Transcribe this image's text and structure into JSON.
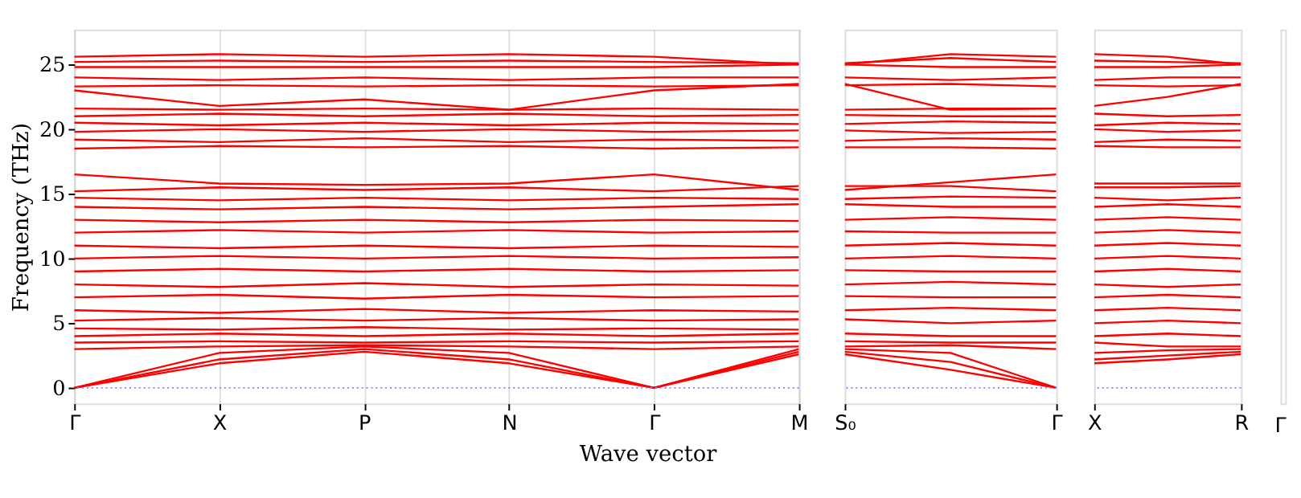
{
  "chart_data": [
    {
      "type": "line",
      "ylabel": "Frequency (THz)",
      "xlabel": "Wave vector",
      "ylim": [
        -1.2,
        27.7
      ],
      "yticks": [
        0,
        5,
        10,
        15,
        20,
        25
      ],
      "categories": [
        "Γ",
        "X",
        "P",
        "N",
        "Γ",
        "M"
      ],
      "grid": "x",
      "legend": false,
      "ref_lines": [
        {
          "axis": "y",
          "value": 0,
          "color": "#8080ff",
          "line_style": "dotted"
        }
      ],
      "series": [
        {
          "color": "#ff0000",
          "values": [
            0,
            1.9,
            2.8,
            1.9,
            0,
            2.6
          ]
        },
        {
          "color": "#ff0000",
          "values": [
            0,
            2.2,
            3.0,
            2.2,
            0,
            2.8
          ]
        },
        {
          "color": "#ff0000",
          "values": [
            0,
            2.7,
            3.2,
            2.7,
            0,
            3.0
          ]
        },
        {
          "color": "#ff0000",
          "values": [
            3.0,
            3.2,
            3.3,
            3.2,
            3.0,
            3.2
          ]
        },
        {
          "color": "#ff0000",
          "values": [
            3.5,
            3.6,
            3.5,
            3.6,
            3.5,
            3.6
          ]
        },
        {
          "color": "#ff0000",
          "values": [
            4.0,
            4.2,
            4.0,
            4.2,
            4.0,
            4.2
          ]
        },
        {
          "color": "#ff0000",
          "values": [
            4.6,
            4.5,
            4.7,
            4.5,
            4.6,
            4.5
          ]
        },
        {
          "color": "#ff0000",
          "values": [
            5.2,
            5.4,
            5.2,
            5.4,
            5.2,
            5.3
          ]
        },
        {
          "color": "#ff0000",
          "values": [
            6.0,
            5.8,
            6.1,
            5.8,
            6.0,
            5.9
          ]
        },
        {
          "color": "#ff0000",
          "values": [
            7.0,
            7.2,
            6.9,
            7.2,
            7.0,
            7.1
          ]
        },
        {
          "color": "#ff0000",
          "values": [
            8.0,
            7.8,
            8.1,
            7.8,
            8.0,
            7.9
          ]
        },
        {
          "color": "#ff0000",
          "values": [
            9.0,
            9.2,
            9.0,
            9.2,
            9.0,
            9.1
          ]
        },
        {
          "color": "#ff0000",
          "values": [
            10.0,
            10.2,
            10.0,
            10.2,
            10.0,
            10.1
          ]
        },
        {
          "color": "#ff0000",
          "values": [
            11.0,
            10.8,
            11.0,
            10.8,
            11.0,
            10.9
          ]
        },
        {
          "color": "#ff0000",
          "values": [
            12.0,
            12.2,
            12.0,
            12.2,
            12.0,
            12.1
          ]
        },
        {
          "color": "#ff0000",
          "values": [
            13.0,
            12.8,
            13.0,
            12.8,
            13.0,
            12.9
          ]
        },
        {
          "color": "#ff0000",
          "values": [
            14.0,
            13.8,
            14.0,
            13.8,
            14.0,
            14.2
          ]
        },
        {
          "color": "#ff0000",
          "values": [
            14.7,
            14.5,
            14.7,
            14.5,
            14.7,
            14.6
          ]
        },
        {
          "color": "#ff0000",
          "values": [
            15.2,
            15.5,
            15.3,
            15.5,
            15.2,
            15.6
          ]
        },
        {
          "color": "#ff0000",
          "values": [
            16.5,
            15.8,
            15.7,
            15.8,
            16.5,
            15.3
          ]
        },
        {
          "color": "#ff0000",
          "values": [
            18.5,
            18.7,
            18.6,
            18.7,
            18.5,
            18.6
          ]
        },
        {
          "color": "#ff0000",
          "values": [
            19.2,
            19.0,
            19.3,
            19.0,
            19.2,
            19.1
          ]
        },
        {
          "color": "#ff0000",
          "values": [
            19.8,
            20.0,
            19.8,
            20.0,
            19.8,
            19.9
          ]
        },
        {
          "color": "#ff0000",
          "values": [
            20.5,
            20.3,
            20.5,
            20.3,
            20.5,
            20.4
          ]
        },
        {
          "color": "#ff0000",
          "values": [
            21.0,
            21.2,
            21.0,
            21.2,
            21.0,
            21.1
          ]
        },
        {
          "color": "#ff0000",
          "values": [
            21.6,
            21.5,
            21.6,
            21.5,
            21.6,
            21.5
          ]
        },
        {
          "color": "#ff0000",
          "values": [
            23.0,
            21.8,
            22.3,
            21.5,
            23.0,
            23.5
          ]
        },
        {
          "color": "#ff0000",
          "values": [
            23.3,
            23.4,
            23.3,
            23.4,
            23.3,
            23.4
          ]
        },
        {
          "color": "#ff0000",
          "values": [
            24.0,
            23.8,
            24.0,
            23.8,
            24.0,
            24.0
          ]
        },
        {
          "color": "#ff0000",
          "values": [
            24.8,
            24.8,
            24.8,
            24.8,
            24.8,
            25.0
          ]
        },
        {
          "color": "#ff0000",
          "values": [
            25.2,
            25.3,
            25.2,
            25.3,
            25.2,
            25.1
          ]
        },
        {
          "color": "#ff0000",
          "values": [
            25.6,
            25.8,
            25.6,
            25.8,
            25.6,
            25.0
          ]
        }
      ]
    },
    {
      "type": "line",
      "ylim": [
        -1.2,
        27.7
      ],
      "yticks": [
        0,
        5,
        10,
        15,
        20,
        25
      ],
      "categories": [
        "S₀",
        null,
        "Γ"
      ],
      "legend": false,
      "tick_labels": "x",
      "ref_lines": [
        {
          "axis": "y",
          "value": 0,
          "color": "#8080ff",
          "line_style": "dotted"
        }
      ],
      "series": [
        {
          "color": "#ff0000",
          "values": [
            2.6,
            1.4,
            0
          ]
        },
        {
          "color": "#ff0000",
          "values": [
            2.8,
            2.0,
            0
          ]
        },
        {
          "color": "#ff0000",
          "values": [
            3.0,
            2.7,
            0
          ]
        },
        {
          "color": "#ff0000",
          "values": [
            3.2,
            3.3,
            3.0
          ]
        },
        {
          "color": "#ff0000",
          "values": [
            3.6,
            3.5,
            3.5
          ]
        },
        {
          "color": "#ff0000",
          "values": [
            4.2,
            4.0,
            4.0
          ]
        },
        {
          "color": "#ff0000",
          "values": [
            5.3,
            5.0,
            5.2
          ]
        },
        {
          "color": "#ff0000",
          "values": [
            6.0,
            6.2,
            6.0
          ]
        },
        {
          "color": "#ff0000",
          "values": [
            7.1,
            7.0,
            7.0
          ]
        },
        {
          "color": "#ff0000",
          "values": [
            8.0,
            8.2,
            8.0
          ]
        },
        {
          "color": "#ff0000",
          "values": [
            9.1,
            9.0,
            9.0
          ]
        },
        {
          "color": "#ff0000",
          "values": [
            10.0,
            10.2,
            10.0
          ]
        },
        {
          "color": "#ff0000",
          "values": [
            11.0,
            11.2,
            11.0
          ]
        },
        {
          "color": "#ff0000",
          "values": [
            12.1,
            12.0,
            12.0
          ]
        },
        {
          "color": "#ff0000",
          "values": [
            13.0,
            13.2,
            13.0
          ]
        },
        {
          "color": "#ff0000",
          "values": [
            14.2,
            14.0,
            14.0
          ]
        },
        {
          "color": "#ff0000",
          "values": [
            14.6,
            14.8,
            14.7
          ]
        },
        {
          "color": "#ff0000",
          "values": [
            15.6,
            15.6,
            15.2
          ]
        },
        {
          "color": "#ff0000",
          "values": [
            15.3,
            15.9,
            16.5
          ]
        },
        {
          "color": "#ff0000",
          "values": [
            18.6,
            18.6,
            18.5
          ]
        },
        {
          "color": "#ff0000",
          "values": [
            19.1,
            19.3,
            19.2
          ]
        },
        {
          "color": "#ff0000",
          "values": [
            19.9,
            19.7,
            19.8
          ]
        },
        {
          "color": "#ff0000",
          "values": [
            20.4,
            20.6,
            20.5
          ]
        },
        {
          "color": "#ff0000",
          "values": [
            21.1,
            21.0,
            21.0
          ]
        },
        {
          "color": "#ff0000",
          "values": [
            21.5,
            21.6,
            21.6
          ]
        },
        {
          "color": "#ff0000",
          "values": [
            23.5,
            21.5,
            21.6
          ]
        },
        {
          "color": "#ff0000",
          "values": [
            23.4,
            23.5,
            23.3
          ]
        },
        {
          "color": "#ff0000",
          "values": [
            24.0,
            23.8,
            24.0
          ]
        },
        {
          "color": "#ff0000",
          "values": [
            25.0,
            24.8,
            24.8
          ]
        },
        {
          "color": "#ff0000",
          "values": [
            25.1,
            25.5,
            25.2
          ]
        },
        {
          "color": "#ff0000",
          "values": [
            25.0,
            25.8,
            25.6
          ]
        }
      ]
    },
    {
      "type": "line",
      "ylim": [
        -1.2,
        27.7
      ],
      "yticks": [
        0,
        5,
        10,
        15,
        20,
        25
      ],
      "categories": [
        "X",
        null,
        "R"
      ],
      "legend": false,
      "tick_labels": "x",
      "ref_lines": [
        {
          "axis": "y",
          "value": 0,
          "color": "#8080ff",
          "line_style": "dotted"
        }
      ],
      "series": [
        {
          "color": "#ff0000",
          "values": [
            1.9,
            2.2,
            2.6
          ]
        },
        {
          "color": "#ff0000",
          "values": [
            2.2,
            2.5,
            2.8
          ]
        },
        {
          "color": "#ff0000",
          "values": [
            2.7,
            2.9,
            3.0
          ]
        },
        {
          "color": "#ff0000",
          "values": [
            3.5,
            3.2,
            3.2
          ]
        },
        {
          "color": "#ff0000",
          "values": [
            4.0,
            4.2,
            4.0
          ]
        },
        {
          "color": "#ff0000",
          "values": [
            5.0,
            5.2,
            5.0
          ]
        },
        {
          "color": "#ff0000",
          "values": [
            6.0,
            6.2,
            6.0
          ]
        },
        {
          "color": "#ff0000",
          "values": [
            7.0,
            7.2,
            7.0
          ]
        },
        {
          "color": "#ff0000",
          "values": [
            8.0,
            7.8,
            8.0
          ]
        },
        {
          "color": "#ff0000",
          "values": [
            9.0,
            9.2,
            9.0
          ]
        },
        {
          "color": "#ff0000",
          "values": [
            10.0,
            10.2,
            10.0
          ]
        },
        {
          "color": "#ff0000",
          "values": [
            11.0,
            11.2,
            11.0
          ]
        },
        {
          "color": "#ff0000",
          "values": [
            12.0,
            12.2,
            12.0
          ]
        },
        {
          "color": "#ff0000",
          "values": [
            13.0,
            13.2,
            13.0
          ]
        },
        {
          "color": "#ff0000",
          "values": [
            14.0,
            14.2,
            14.0
          ]
        },
        {
          "color": "#ff0000",
          "values": [
            14.7,
            14.5,
            14.7
          ]
        },
        {
          "color": "#ff0000",
          "values": [
            15.5,
            15.5,
            15.6
          ]
        },
        {
          "color": "#ff0000",
          "values": [
            15.8,
            15.8,
            15.8
          ]
        },
        {
          "color": "#ff0000",
          "values": [
            18.7,
            18.6,
            18.6
          ]
        },
        {
          "color": "#ff0000",
          "values": [
            19.0,
            19.2,
            19.1
          ]
        },
        {
          "color": "#ff0000",
          "values": [
            20.0,
            19.8,
            19.9
          ]
        },
        {
          "color": "#ff0000",
          "values": [
            20.3,
            20.5,
            20.4
          ]
        },
        {
          "color": "#ff0000",
          "values": [
            21.2,
            21.0,
            21.1
          ]
        },
        {
          "color": "#ff0000",
          "values": [
            21.8,
            22.5,
            23.5
          ]
        },
        {
          "color": "#ff0000",
          "values": [
            23.4,
            23.3,
            23.4
          ]
        },
        {
          "color": "#ff0000",
          "values": [
            23.8,
            24.0,
            24.0
          ]
        },
        {
          "color": "#ff0000",
          "values": [
            24.8,
            24.8,
            25.0
          ]
        },
        {
          "color": "#ff0000",
          "values": [
            25.3,
            25.2,
            25.1
          ]
        },
        {
          "color": "#ff0000",
          "values": [
            25.8,
            25.6,
            25.0
          ]
        }
      ]
    },
    {
      "type": "other",
      "annotations": [
        "Γ"
      ]
    }
  ]
}
